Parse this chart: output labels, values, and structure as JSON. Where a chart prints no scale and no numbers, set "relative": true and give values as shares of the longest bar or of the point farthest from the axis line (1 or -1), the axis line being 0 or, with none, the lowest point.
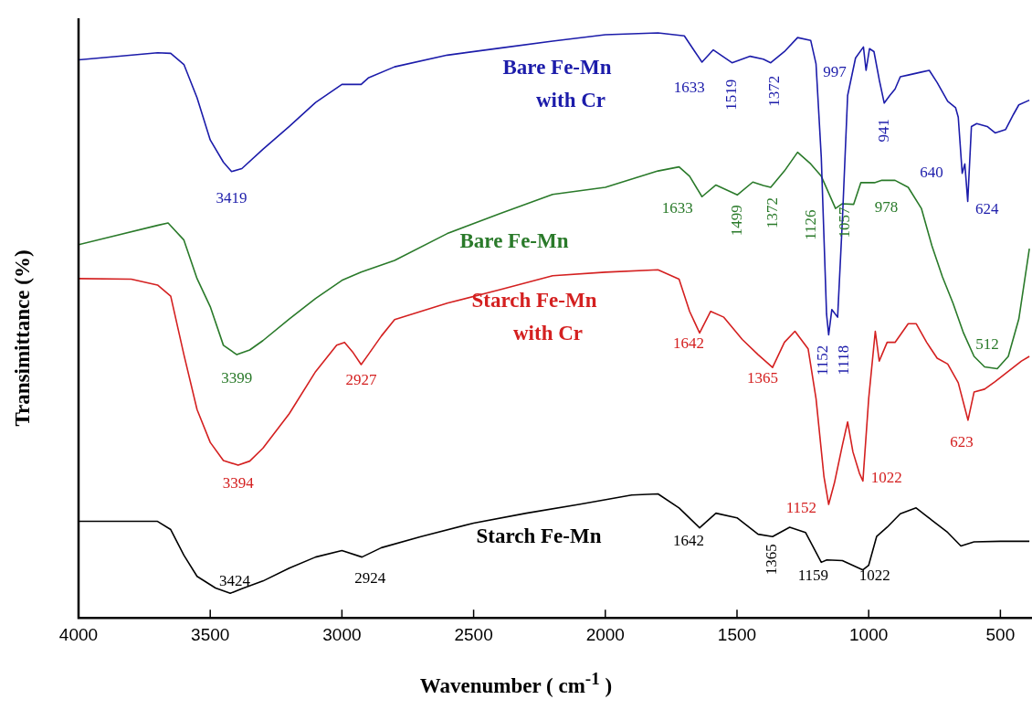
{
  "chart_data": {
    "type": "line",
    "relative": true,
    "legend": false,
    "grid": false,
    "marker": "none",
    "line_style": "solid",
    "ylabel": "Transimittance (%)",
    "xlabel": "Wavenumber ( cm$^{-1}$ )",
    "xlim": [
      4000,
      380
    ],
    "xticks": [
      4000,
      3500,
      3000,
      2500,
      2000,
      1500,
      1000,
      500
    ],
    "series": [
      {
        "name": "Bare Fe-Mn with Cr",
        "color": "#1c1caa",
        "x": [
          4000,
          3700,
          3650,
          3600,
          3550,
          3500,
          3450,
          3419,
          3380,
          3300,
          3200,
          3100,
          3000,
          2927,
          2900,
          2800,
          2600,
          2400,
          2200,
          2000,
          1800,
          1700,
          1660,
          1633,
          1590,
          1519,
          1450,
          1400,
          1372,
          1320,
          1270,
          1220,
          1200,
          1180,
          1160,
          1152,
          1140,
          1118,
          1100,
          1080,
          1050,
          1020,
          1010,
          997,
          980,
          960,
          941,
          920,
          900,
          880,
          850,
          800,
          770,
          740,
          700,
          670,
          660,
          645,
          635,
          624,
          610,
          590,
          550,
          520,
          480,
          450,
          430,
          390
        ],
        "values": [
          0.954,
          0.966,
          0.965,
          0.946,
          0.889,
          0.817,
          0.779,
          0.763,
          0.768,
          0.801,
          0.84,
          0.881,
          0.912,
          0.912,
          0.923,
          0.942,
          0.962,
          0.974,
          0.986,
          0.997,
          1.0,
          0.995,
          0.968,
          0.95,
          0.971,
          0.949,
          0.96,
          0.955,
          0.949,
          0.968,
          0.992,
          0.987,
          0.947,
          0.787,
          0.519,
          0.484,
          0.527,
          0.514,
          0.679,
          0.893,
          0.957,
          0.976,
          0.936,
          0.973,
          0.968,
          0.92,
          0.88,
          0.893,
          0.904,
          0.925,
          0.928,
          0.933,
          0.936,
          0.915,
          0.883,
          0.872,
          0.856,
          0.76,
          0.776,
          0.712,
          0.84,
          0.845,
          0.84,
          0.829,
          0.835,
          0.861,
          0.877,
          0.885
        ]
      },
      {
        "name": "Bare Fe-Mn",
        "color": "#2a7a2a",
        "x": [
          4000,
          3700,
          3660,
          3600,
          3550,
          3500,
          3450,
          3399,
          3350,
          3300,
          3200,
          3100,
          3000,
          2927,
          2800,
          2600,
          2400,
          2200,
          2000,
          1800,
          1720,
          1680,
          1633,
          1580,
          1499,
          1440,
          1400,
          1372,
          1320,
          1270,
          1220,
          1180,
          1126,
          1100,
          1057,
          1030,
          978,
          950,
          900,
          850,
          800,
          760,
          720,
          680,
          640,
          600,
          560,
          512,
          470,
          430,
          390
        ],
        "values": [
          0.638,
          0.671,
          0.675,
          0.646,
          0.58,
          0.532,
          0.466,
          0.45,
          0.458,
          0.474,
          0.511,
          0.546,
          0.577,
          0.591,
          0.611,
          0.657,
          0.691,
          0.724,
          0.736,
          0.764,
          0.771,
          0.755,
          0.72,
          0.74,
          0.723,
          0.745,
          0.739,
          0.736,
          0.764,
          0.796,
          0.776,
          0.755,
          0.7,
          0.708,
          0.707,
          0.744,
          0.744,
          0.748,
          0.748,
          0.736,
          0.7,
          0.636,
          0.583,
          0.538,
          0.487,
          0.447,
          0.429,
          0.426,
          0.447,
          0.511,
          0.631
        ]
      },
      {
        "name": "Starch Fe-Mn with Cr",
        "color": "#d42020",
        "x": [
          4000,
          3800,
          3700,
          3650,
          3600,
          3550,
          3500,
          3450,
          3394,
          3350,
          3300,
          3200,
          3100,
          3020,
          2990,
          2960,
          2927,
          2900,
          2850,
          2800,
          2600,
          2400,
          2200,
          2000,
          1800,
          1720,
          1680,
          1642,
          1600,
          1550,
          1480,
          1420,
          1365,
          1320,
          1280,
          1230,
          1200,
          1170,
          1152,
          1130,
          1100,
          1080,
          1060,
          1035,
          1022,
          1000,
          975,
          960,
          930,
          900,
          850,
          820,
          780,
          740,
          700,
          660,
          623,
          600,
          560,
          520,
          480,
          420,
          390
        ],
        "values": [
          0.58,
          0.579,
          0.569,
          0.55,
          0.45,
          0.356,
          0.3,
          0.269,
          0.261,
          0.268,
          0.29,
          0.349,
          0.421,
          0.466,
          0.471,
          0.455,
          0.433,
          0.45,
          0.482,
          0.51,
          0.538,
          0.561,
          0.585,
          0.591,
          0.595,
          0.579,
          0.524,
          0.487,
          0.524,
          0.514,
          0.476,
          0.45,
          0.428,
          0.471,
          0.49,
          0.46,
          0.375,
          0.242,
          0.194,
          0.231,
          0.295,
          0.335,
          0.284,
          0.247,
          0.234,
          0.375,
          0.49,
          0.439,
          0.471,
          0.471,
          0.503,
          0.503,
          0.471,
          0.444,
          0.434,
          0.402,
          0.338,
          0.386,
          0.391,
          0.404,
          0.418,
          0.439,
          0.447
        ]
      },
      {
        "name": "Starch Fe-Mn",
        "color": "#000000",
        "x": [
          4000,
          3700,
          3650,
          3600,
          3550,
          3480,
          3424,
          3380,
          3300,
          3200,
          3100,
          3000,
          2924,
          2850,
          2700,
          2500,
          2300,
          2100,
          1900,
          1800,
          1720,
          1642,
          1580,
          1500,
          1420,
          1365,
          1300,
          1240,
          1180,
          1159,
          1100,
          1022,
          1000,
          970,
          930,
          880,
          820,
          760,
          700,
          650,
          600,
          500,
          390
        ],
        "values": [
          0.165,
          0.165,
          0.151,
          0.107,
          0.071,
          0.051,
          0.042,
          0.05,
          0.063,
          0.085,
          0.104,
          0.115,
          0.104,
          0.12,
          0.139,
          0.162,
          0.179,
          0.194,
          0.21,
          0.212,
          0.188,
          0.154,
          0.179,
          0.171,
          0.143,
          0.139,
          0.155,
          0.146,
          0.095,
          0.099,
          0.098,
          0.082,
          0.09,
          0.139,
          0.155,
          0.178,
          0.188,
          0.167,
          0.146,
          0.123,
          0.13,
          0.131,
          0.131
        ]
      }
    ],
    "annotations": [
      {
        "text": "3419",
        "x": 3419,
        "y": 0.763
      },
      {
        "text": "1633",
        "x": 1633,
        "y": 0.95
      },
      {
        "text": "1519",
        "x": 1519,
        "y": 0.949
      },
      {
        "text": "1372",
        "x": 1372,
        "y": 0.949
      },
      {
        "text": "997",
        "x": 997,
        "y": 0.973
      },
      {
        "text": "941",
        "x": 941,
        "y": 0.88
      },
      {
        "text": "640",
        "x": 640,
        "y": 0.768
      },
      {
        "text": "624",
        "x": 624,
        "y": 0.712
      },
      {
        "text": "1152",
        "x": 1152,
        "y": 0.484
      },
      {
        "text": "1118",
        "x": 1118,
        "y": 0.514
      },
      {
        "text": "3399",
        "x": 3399,
        "y": 0.45
      },
      {
        "text": "1633",
        "x": 1633,
        "y": 0.72
      },
      {
        "text": "1499",
        "x": 1499,
        "y": 0.723
      },
      {
        "text": "1372",
        "x": 1372,
        "y": 0.736
      },
      {
        "text": "1126",
        "x": 1126,
        "y": 0.7
      },
      {
        "text": "1057",
        "x": 1057,
        "y": 0.707
      },
      {
        "text": "978",
        "x": 978,
        "y": 0.744
      },
      {
        "text": "512",
        "x": 512,
        "y": 0.426
      },
      {
        "text": "3394",
        "x": 3394,
        "y": 0.261
      },
      {
        "text": "2927",
        "x": 2927,
        "y": 0.433
      },
      {
        "text": "1642",
        "x": 1642,
        "y": 0.487
      },
      {
        "text": "1365",
        "x": 1365,
        "y": 0.428
      },
      {
        "text": "1152",
        "x": 1152,
        "y": 0.194
      },
      {
        "text": "1022",
        "x": 1022,
        "y": 0.234
      },
      {
        "text": "623",
        "x": 623,
        "y": 0.338
      },
      {
        "text": "3424",
        "x": 3424,
        "y": 0.042
      },
      {
        "text": "2924",
        "x": 2924,
        "y": 0.104
      },
      {
        "text": "1642",
        "x": 1642,
        "y": 0.154
      },
      {
        "text": "1365",
        "x": 1365,
        "y": 0.139
      },
      {
        "text": "1159",
        "x": 1159,
        "y": 0.099
      },
      {
        "text": "1022",
        "x": 1022,
        "y": 0.082
      }
    ]
  }
}
